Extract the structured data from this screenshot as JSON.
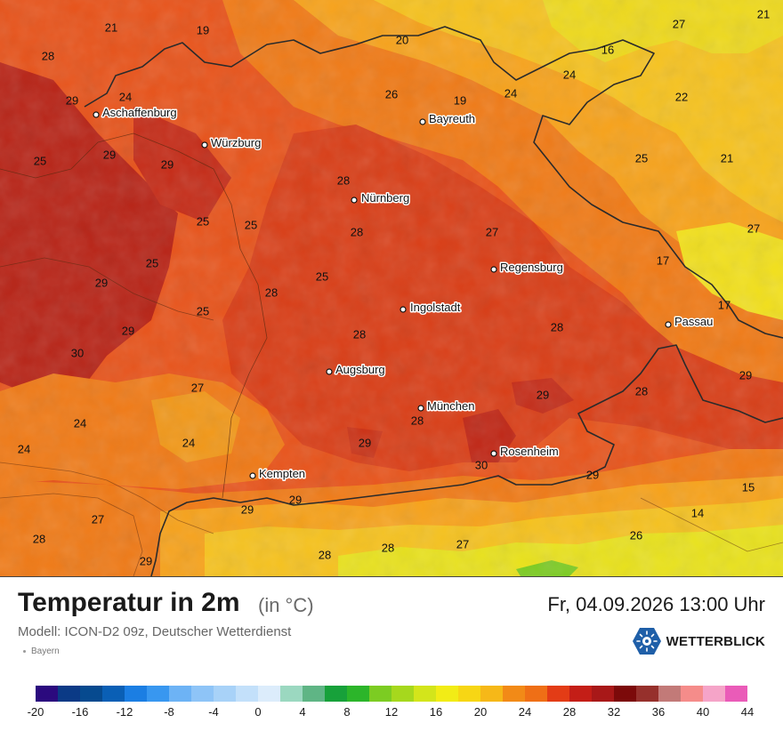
{
  "header": {
    "title": "Temperatur in 2m",
    "unit": "(in °C)",
    "datetime": "Fr, 04.09.2026 13:00 Uhr",
    "model": "Modell: ICON-D2 09z, Deutscher Wetterdienst",
    "region": "Bayern",
    "brand": "WETTERBLICK"
  },
  "colors": {
    "brand": "#1f5fa8",
    "base": "#e8531a",
    "warm": "#d93e17",
    "hot": "#b82417",
    "mild": "#f07a16",
    "cool": "#f7a21a",
    "cooler": "#f6c21e",
    "coldest": "#e9e21c"
  },
  "map": {
    "cities": [
      {
        "name": "Aschaffenburg"
      },
      {
        "name": "Würzburg"
      },
      {
        "name": "Bayreuth"
      },
      {
        "name": "Nürnberg"
      },
      {
        "name": "Regensburg"
      },
      {
        "name": "Ingolstadt"
      },
      {
        "name": "Passau"
      },
      {
        "name": "Augsburg"
      },
      {
        "name": "München"
      },
      {
        "name": "Rosenheim"
      },
      {
        "name": "Kempten"
      }
    ],
    "temperatures": [
      "21",
      "19",
      "20",
      "27",
      "21",
      "28",
      "16",
      "24",
      "29",
      "24",
      "26",
      "19",
      "24",
      "22",
      "25",
      "29",
      "29",
      "25",
      "21",
      "28",
      "28",
      "25",
      "25",
      "27",
      "27",
      "25",
      "29",
      "17",
      "28",
      "25",
      "17",
      "25",
      "29",
      "28",
      "30",
      "27",
      "29",
      "28",
      "24",
      "28",
      "29",
      "24",
      "29",
      "28",
      "24",
      "30",
      "29",
      "15",
      "29",
      "29",
      "27",
      "14",
      "28",
      "26",
      "29",
      "28",
      "28",
      "27"
    ]
  },
  "legend": {
    "colors": [
      "#2b0a7e",
      "#0b3a86",
      "#064a8f",
      "#0a5fb5",
      "#1b7ee3",
      "#3897f0",
      "#6db3f5",
      "#8ec4f7",
      "#a8d2f8",
      "#c3e0fa",
      "#dcecfb",
      "#9bd8c0",
      "#5fb585",
      "#17a13a",
      "#2cb52a",
      "#7ccc22",
      "#a6d81d",
      "#d3e51b",
      "#f2ec16",
      "#f7d614",
      "#f6b818",
      "#f28a17",
      "#ef6f16",
      "#e33c16",
      "#c41e17",
      "#a81818",
      "#7c0a0a",
      "#96302c",
      "#c27a78",
      "#f58c8a",
      "#f5a4c8",
      "#ea5bb8"
    ],
    "ticks": [
      "-20",
      "-16",
      "-12",
      "-8",
      "-4",
      "0",
      "4",
      "8",
      "12",
      "16",
      "20",
      "24",
      "28",
      "32",
      "36",
      "40",
      "44"
    ]
  }
}
